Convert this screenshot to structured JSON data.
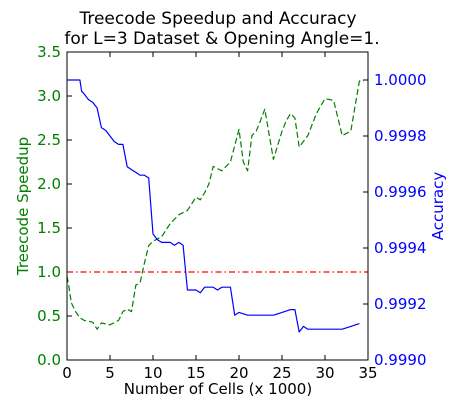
{
  "chart_data": {
    "type": "line",
    "title": "Treecode Speedup and Accuracy",
    "subtitle": "for L=3 Dataset & Opening Angle=1.",
    "xlabel": "Number of Cells (x 1000)",
    "ylabel_left": "Treecode Speedup",
    "ylabel_right": "Accuracy",
    "xlim": [
      0,
      35
    ],
    "ylim_left": [
      0.0,
      3.5
    ],
    "ylim_right": [
      0.999,
      1.0001
    ],
    "grid": false,
    "x_ticks": [
      "0",
      "5",
      "10",
      "15",
      "20",
      "25",
      "30",
      "35"
    ],
    "y_ticks_left": [
      "0.0",
      "0.5",
      "1.0",
      "1.5",
      "2.0",
      "2.5",
      "3.0",
      "3.5"
    ],
    "y_ticks_right": [
      "0.9990",
      "0.9992",
      "0.9994",
      "0.9996",
      "0.9998",
      "1.0000"
    ],
    "colors": {
      "left_axis": "#008000",
      "right_axis": "#0000ff",
      "reference": "#ff0000"
    },
    "series": [
      {
        "axis": "left",
        "style": "dashed",
        "color": "#008000",
        "x": [
          0.0,
          0.2,
          0.5,
          1.0,
          1.5,
          2.0,
          3.0,
          3.5,
          4.0,
          5.0,
          6.0,
          6.5,
          7.0,
          7.5,
          8.0,
          8.5,
          9.0,
          9.5,
          10.0,
          11.0,
          12.0,
          13.0,
          14.0,
          15.0,
          15.5,
          16.0,
          16.5,
          17.0,
          18.0,
          19.0,
          20.0,
          20.5,
          21.0,
          21.5,
          22.0,
          22.5,
          23.0,
          24.0,
          25.0,
          25.5,
          26.0,
          26.5,
          27.0,
          28.0,
          29.0,
          30.0,
          31.0,
          32.0,
          33.0,
          34.0,
          34.5
        ],
        "y": [
          0.95,
          0.85,
          0.65,
          0.55,
          0.48,
          0.45,
          0.43,
          0.35,
          0.42,
          0.4,
          0.45,
          0.55,
          0.58,
          0.55,
          0.85,
          0.88,
          1.1,
          1.3,
          1.35,
          1.4,
          1.55,
          1.65,
          1.7,
          1.85,
          1.82,
          1.9,
          2.0,
          2.2,
          2.15,
          2.25,
          2.62,
          2.25,
          2.15,
          2.55,
          2.6,
          2.72,
          2.85,
          2.28,
          2.6,
          2.72,
          2.8,
          2.75,
          2.42,
          2.55,
          2.8,
          2.97,
          2.95,
          2.55,
          2.6,
          3.17,
          3.17
        ]
      },
      {
        "axis": "right",
        "style": "solid",
        "color": "#0000ff",
        "x": [
          0.0,
          1.5,
          1.7,
          2.0,
          2.5,
          3.0,
          3.5,
          4.0,
          4.5,
          5.0,
          5.5,
          6.0,
          6.5,
          7.0,
          7.5,
          8.0,
          8.5,
          9.0,
          9.5,
          10.0,
          10.5,
          11.0,
          11.5,
          12.0,
          12.5,
          13.0,
          13.5,
          14.0,
          15.0,
          15.5,
          16.0,
          16.5,
          17.0,
          17.5,
          18.0,
          18.5,
          19.0,
          19.5,
          20.0,
          21.0,
          22.0,
          23.0,
          24.0,
          25.0,
          26.0,
          26.5,
          27.0,
          27.5,
          28.0,
          29.0,
          30.0,
          31.0,
          32.0,
          33.0,
          34.0
        ],
        "y": [
          1.0,
          1.0,
          0.99996,
          0.99995,
          0.99993,
          0.99992,
          0.9999,
          0.99983,
          0.99982,
          0.9998,
          0.99978,
          0.99977,
          0.99977,
          0.99969,
          0.99968,
          0.99967,
          0.99966,
          0.99966,
          0.99965,
          0.99945,
          0.99943,
          0.99942,
          0.99942,
          0.99942,
          0.99941,
          0.99942,
          0.99941,
          0.99925,
          0.99925,
          0.99924,
          0.99926,
          0.99926,
          0.99926,
          0.99925,
          0.99926,
          0.99926,
          0.99926,
          0.99916,
          0.99917,
          0.99916,
          0.99916,
          0.99916,
          0.99916,
          0.99917,
          0.99918,
          0.99918,
          0.9991,
          0.99912,
          0.99911,
          0.99911,
          0.99911,
          0.99911,
          0.99911,
          0.99912,
          0.99913
        ]
      },
      {
        "axis": "left",
        "style": "dashdot",
        "color": "#ff0000",
        "x": [
          0,
          35
        ],
        "y": [
          1.0,
          1.0
        ]
      }
    ]
  }
}
